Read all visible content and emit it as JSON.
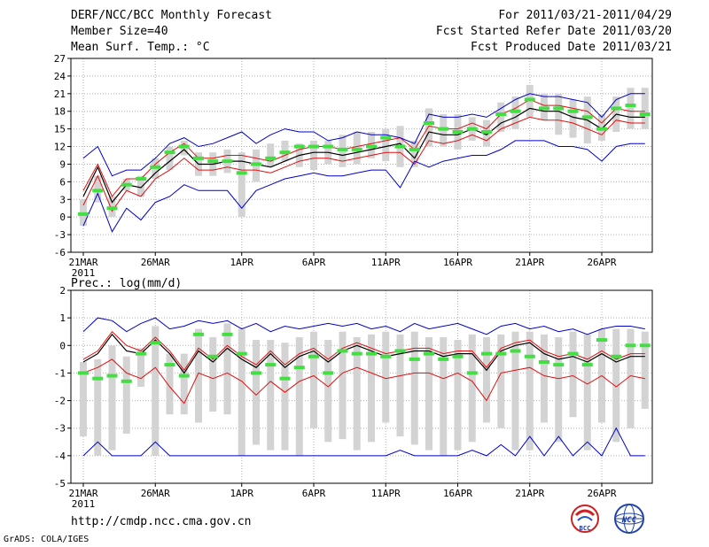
{
  "header": {
    "title_left": "DERF/NCC/BCC Monthly Forecast",
    "member_size": "Member Size=40",
    "variable": "Mean Surf. Temp.: °C",
    "period": "For 2011/03/21-2011/04/29",
    "started": "Fcst Started Refer Date 2011/03/20",
    "produced": "Fcst Produced Date 2011/03/21"
  },
  "footer": {
    "url": "http://cmdp.ncc.cma.gov.cn",
    "credit": "GrADS: COLA/IGES",
    "logo_bcc_text": "BCC",
    "logo_ncc_text": "NCC"
  },
  "colors": {
    "grid": "#b0b0b0",
    "box": "#d3d3d3",
    "mean": "#000000",
    "spread": "#e01010",
    "extreme": "#0000cc",
    "obs": "#44dd44"
  },
  "chart_data": [
    {
      "type": "ensemble-box-line",
      "title": "Mean Surf. Temp.: °C",
      "x_days": 40,
      "x_tick_labels": [
        "21MAR",
        "26MAR",
        "1APR",
        "6APR",
        "11APR",
        "16APR",
        "21APR",
        "26APR"
      ],
      "x_tick_days": [
        0,
        5,
        11,
        16,
        21,
        26,
        31,
        36
      ],
      "year_label": "2011",
      "ylim": [
        -6,
        27
      ],
      "yticks": [
        -6,
        -3,
        0,
        3,
        6,
        9,
        12,
        15,
        18,
        21,
        24,
        27
      ],
      "series": [
        {
          "name": "ensemble mean",
          "values": [
            3.5,
            8.5,
            2.5,
            5.5,
            5.0,
            7.5,
            9.5,
            11.5,
            9.0,
            9.0,
            9.5,
            9.5,
            9.0,
            8.5,
            9.5,
            10.5,
            11.0,
            11.0,
            10.5,
            11.0,
            11.5,
            12.0,
            12.5,
            10.0,
            14.5,
            14.0,
            14.0,
            15.0,
            14.0,
            16.0,
            17.0,
            18.5,
            18.0,
            18.0,
            17.0,
            16.5,
            15.0,
            17.5,
            17.0,
            17.0
          ]
        },
        {
          "name": "upper spread",
          "values": [
            4.5,
            9.0,
            3.5,
            6.5,
            6.5,
            9.0,
            11.0,
            12.5,
            10.0,
            10.0,
            10.5,
            10.5,
            10.0,
            9.5,
            10.5,
            11.5,
            12.0,
            12.0,
            11.5,
            12.0,
            12.5,
            13.0,
            13.5,
            11.5,
            15.5,
            15.0,
            15.0,
            16.0,
            15.0,
            17.5,
            18.5,
            20.0,
            19.0,
            19.0,
            18.5,
            18.0,
            16.0,
            18.5,
            18.0,
            18.0
          ]
        },
        {
          "name": "lower spread",
          "values": [
            2.0,
            7.0,
            1.0,
            4.5,
            3.5,
            6.5,
            8.0,
            10.0,
            8.0,
            8.0,
            8.5,
            8.0,
            8.0,
            7.5,
            8.5,
            9.5,
            10.0,
            10.0,
            9.5,
            10.0,
            10.5,
            11.0,
            11.0,
            9.0,
            13.0,
            12.5,
            13.0,
            14.0,
            13.0,
            15.0,
            16.0,
            17.0,
            16.5,
            16.5,
            16.0,
            15.0,
            14.0,
            16.5,
            16.0,
            16.0
          ]
        },
        {
          "name": "ensemble max",
          "values": [
            10.0,
            12.0,
            7.0,
            8.0,
            8.0,
            10.0,
            12.5,
            13.5,
            12.0,
            12.5,
            13.5,
            14.5,
            12.5,
            14.0,
            15.0,
            14.5,
            14.5,
            13.0,
            13.5,
            14.5,
            14.0,
            14.0,
            13.5,
            12.5,
            17.5,
            17.0,
            17.0,
            17.5,
            17.0,
            18.5,
            20.0,
            21.0,
            20.5,
            20.5,
            20.0,
            19.5,
            17.0,
            20.0,
            21.0,
            21.0
          ]
        },
        {
          "name": "ensemble min",
          "values": [
            -1.5,
            4.0,
            -2.5,
            1.5,
            -0.5,
            2.5,
            3.5,
            5.5,
            4.5,
            4.5,
            4.5,
            1.5,
            4.5,
            5.5,
            6.5,
            7.0,
            7.5,
            7.0,
            7.0,
            7.5,
            8.0,
            8.0,
            5.0,
            9.5,
            8.5,
            9.5,
            10.0,
            10.5,
            10.5,
            11.5,
            13.0,
            13.0,
            13.0,
            12.0,
            12.0,
            11.5,
            9.5,
            12.0,
            12.5,
            12.5
          ]
        },
        {
          "name": "observed",
          "values": [
            0.5,
            4.5,
            1.5,
            5.5,
            6.5,
            8.5,
            11.0,
            12.0,
            10.0,
            9.5,
            9.5,
            7.5,
            9.0,
            10.0,
            11.0,
            12.0,
            12.0,
            12.0,
            11.5,
            11.5,
            12.0,
            13.5,
            12.0,
            11.5,
            16.0,
            15.0,
            14.5,
            15.0,
            14.5,
            17.5,
            18.0,
            20.0,
            18.5,
            18.5,
            18.0,
            17.0,
            15.0,
            18.5,
            19.0,
            17.5
          ]
        }
      ],
      "box_low": [
        -1.5,
        2.5,
        0.0,
        4.5,
        3.5,
        6.5,
        8.0,
        10.5,
        7.0,
        7.0,
        7.5,
        0.0,
        6.0,
        8.5,
        9.5,
        8.5,
        8.0,
        9.0,
        8.5,
        9.0,
        10.0,
        9.5,
        8.5,
        8.5,
        12.0,
        12.0,
        11.5,
        13.0,
        12.0,
        14.5,
        15.0,
        17.0,
        16.5,
        14.0,
        13.5,
        12.5,
        13.0,
        14.5,
        15.0,
        15.0
      ],
      "box_high": [
        3.0,
        7.0,
        3.5,
        6.5,
        7.0,
        10.0,
        12.0,
        13.0,
        11.0,
        11.0,
        11.5,
        11.0,
        11.5,
        12.5,
        13.0,
        12.5,
        13.0,
        13.0,
        14.0,
        14.5,
        14.5,
        15.0,
        15.5,
        13.0,
        18.5,
        17.5,
        17.5,
        17.0,
        16.5,
        19.5,
        20.5,
        22.5,
        21.0,
        21.0,
        20.0,
        20.5,
        17.5,
        20.5,
        22.0,
        22.0
      ]
    },
    {
      "type": "ensemble-box-line",
      "title": "Prec.: log(mm/d)",
      "x_days": 40,
      "x_tick_labels": [
        "21MAR",
        "26MAR",
        "1APR",
        "6APR",
        "11APR",
        "16APR",
        "21APR",
        "26APR"
      ],
      "x_tick_days": [
        0,
        5,
        11,
        16,
        21,
        26,
        31,
        36
      ],
      "year_label": "2011",
      "ylim": [
        -5,
        2
      ],
      "yticks": [
        -5,
        -4,
        -3,
        -2,
        -1,
        0,
        1,
        2
      ],
      "series": [
        {
          "name": "ensemble mean",
          "values": [
            -0.6,
            -0.3,
            0.4,
            -0.2,
            -0.3,
            0.2,
            -0.3,
            -1.0,
            -0.2,
            -0.6,
            -0.1,
            -0.5,
            -0.8,
            -0.3,
            -0.8,
            -0.4,
            -0.2,
            -0.6,
            -0.2,
            0.0,
            -0.2,
            -0.4,
            -0.3,
            -0.2,
            -0.2,
            -0.4,
            -0.3,
            -0.3,
            -0.9,
            -0.2,
            0.0,
            0.1,
            -0.3,
            -0.5,
            -0.4,
            -0.6,
            -0.3,
            -0.6,
            -0.4,
            -0.4
          ]
        },
        {
          "name": "upper spread",
          "values": [
            -0.5,
            -0.2,
            0.5,
            0.0,
            -0.2,
            0.3,
            -0.2,
            -0.9,
            -0.1,
            -0.5,
            0.0,
            -0.4,
            -0.7,
            -0.2,
            -0.7,
            -0.3,
            -0.1,
            -0.5,
            -0.1,
            0.1,
            -0.1,
            -0.3,
            -0.2,
            -0.1,
            -0.1,
            -0.3,
            -0.2,
            -0.2,
            -0.8,
            -0.1,
            0.1,
            0.2,
            -0.2,
            -0.4,
            -0.3,
            -0.5,
            -0.2,
            -0.5,
            -0.3,
            -0.3
          ]
        },
        {
          "name": "lower spread",
          "values": [
            -1.0,
            -0.8,
            -0.5,
            -1.0,
            -1.2,
            -0.8,
            -1.5,
            -2.1,
            -1.0,
            -1.2,
            -1.0,
            -1.3,
            -1.8,
            -1.3,
            -1.7,
            -1.3,
            -1.1,
            -1.5,
            -1.0,
            -0.8,
            -1.0,
            -1.2,
            -1.1,
            -1.0,
            -1.0,
            -1.2,
            -1.0,
            -1.3,
            -2.0,
            -1.0,
            -0.9,
            -0.8,
            -1.1,
            -1.2,
            -1.1,
            -1.4,
            -1.1,
            -1.5,
            -1.1,
            -1.2
          ]
        },
        {
          "name": "ensemble max",
          "values": [
            0.5,
            1.0,
            0.9,
            0.5,
            0.8,
            1.0,
            0.6,
            0.7,
            0.9,
            0.8,
            0.9,
            0.6,
            0.8,
            0.5,
            0.7,
            0.6,
            0.7,
            0.8,
            0.7,
            0.8,
            0.6,
            0.7,
            0.5,
            0.8,
            0.6,
            0.7,
            0.8,
            0.6,
            0.4,
            0.7,
            0.8,
            0.6,
            0.7,
            0.5,
            0.6,
            0.4,
            0.6,
            0.7,
            0.7,
            0.6
          ]
        },
        {
          "name": "ensemble min",
          "values": [
            -4.0,
            -3.5,
            -4.0,
            -4.0,
            -4.0,
            -3.5,
            -4.0,
            -4.0,
            -4.0,
            -4.0,
            -4.0,
            -4.0,
            -4.0,
            -4.0,
            -4.0,
            -4.0,
            -4.0,
            -4.0,
            -4.0,
            -4.0,
            -4.0,
            -4.0,
            -3.8,
            -4.0,
            -4.0,
            -4.0,
            -4.0,
            -3.8,
            -4.0,
            -3.6,
            -4.0,
            -3.3,
            -4.0,
            -3.3,
            -4.0,
            -3.5,
            -4.0,
            -3.0,
            -4.0,
            -4.0
          ]
        },
        {
          "name": "observed",
          "values": [
            -1.0,
            -1.2,
            -1.1,
            -1.3,
            -0.3,
            0.1,
            -0.7,
            -1.1,
            0.4,
            -0.4,
            0.4,
            -0.3,
            -1.0,
            -0.7,
            -1.2,
            -0.8,
            -0.4,
            -1.0,
            -0.2,
            -0.3,
            -0.3,
            -0.4,
            -0.2,
            -0.5,
            -0.3,
            -0.5,
            -0.4,
            -1.0,
            -0.3,
            -0.3,
            -0.2,
            -0.4,
            -0.6,
            -0.7,
            -0.3,
            -0.7,
            0.2,
            -0.4,
            0.0,
            0.0
          ]
        }
      ],
      "box_low": [
        -3.3,
        -4.0,
        -3.8,
        -3.2,
        -1.5,
        -4.0,
        -2.5,
        -2.5,
        -2.8,
        -2.4,
        -2.5,
        -4.0,
        -3.6,
        -3.8,
        -3.8,
        -4.0,
        -3.0,
        -3.5,
        -3.4,
        -3.8,
        -3.5,
        -2.8,
        -3.3,
        -3.6,
        -3.8,
        -4.0,
        -3.8,
        -3.5,
        -2.8,
        -3.0,
        -3.8,
        -3.8,
        -2.8,
        -3.5,
        -2.6,
        -3.8,
        -2.8,
        -3.5,
        -3.0,
        -2.3
      ],
      "box_high": [
        -0.6,
        -0.5,
        0.0,
        -0.4,
        -0.1,
        0.7,
        -0.3,
        -0.3,
        0.6,
        0.3,
        0.8,
        0.6,
        0.2,
        0.2,
        0.1,
        0.3,
        0.5,
        0.2,
        0.5,
        0.3,
        0.4,
        0.5,
        0.4,
        0.5,
        0.3,
        0.3,
        0.2,
        0.4,
        0.3,
        0.4,
        0.5,
        0.5,
        0.4,
        0.3,
        0.5,
        0.4,
        0.6,
        0.6,
        0.6,
        0.5
      ]
    }
  ]
}
